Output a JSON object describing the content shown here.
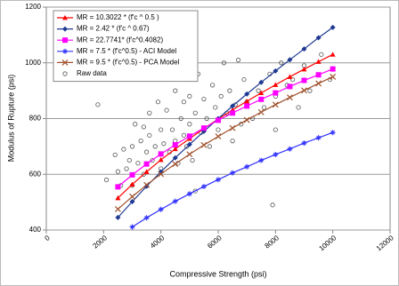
{
  "chart_data": {
    "type": "line",
    "xlabel": "Compressive Strength (psi)",
    "ylabel": "Modulus of Rupture (psi)",
    "xlim": [
      0,
      12000
    ],
    "xticks": [
      0,
      2000,
      4000,
      6000,
      8000,
      10000,
      12000
    ],
    "ylim": [
      400,
      1200
    ],
    "yticks": [
      400,
      600,
      800,
      1000,
      1200
    ],
    "grid": true,
    "legend": "upper left",
    "x": [
      2500,
      3000,
      3500,
      4000,
      4500,
      5000,
      5500,
      6000,
      6500,
      7000,
      7500,
      8000,
      8500,
      9000,
      9500,
      10000
    ],
    "series": [
      {
        "name": "MR = 10.3022 * (f'c ^ 0.5 )",
        "color": "#ff0000",
        "marker": "triangle",
        "values": [
          515,
          564,
          609,
          652,
          691,
          728,
          764,
          798,
          831,
          862,
          892,
          921,
          950,
          977,
          1004,
          1030
        ]
      },
      {
        "name": "MR = 2.42 * (f'c ^ 0.67)",
        "color": "#1f3a93",
        "marker": "diamond",
        "values": [
          445,
          502,
          557,
          609,
          659,
          707,
          754,
          800,
          845,
          888,
          930,
          971,
          1011,
          1050,
          1090,
          1127
        ]
      },
      {
        "name": "MR = 22.7741* (f'c^0.4082)",
        "color": "#ff00ff",
        "marker": "square",
        "values": [
          555,
          598,
          637,
          673,
          706,
          737,
          766,
          794,
          820,
          845,
          869,
          892,
          915,
          937,
          957,
          978
        ]
      },
      {
        "name": "MR = 7.5 * (f'c^0.5) - ACI Model",
        "color": "#3333ff",
        "marker": "star",
        "values": [
          null,
          411,
          444,
          474,
          503,
          530,
          556,
          581,
          605,
          627,
          650,
          671,
          691,
          712,
          731,
          750
        ]
      },
      {
        "name": "MR = 9.5 * (f'c^0.5) - PCA Model",
        "color": "#a0522d",
        "marker": "cross",
        "values": [
          475,
          520,
          562,
          601,
          637,
          672,
          705,
          736,
          766,
          795,
          823,
          850,
          876,
          901,
          926,
          950
        ]
      }
    ],
    "scatter": {
      "name": "Raw data",
      "color": "#555555",
      "x": [
        1800,
        2100,
        2400,
        2500,
        2600,
        2700,
        2800,
        2900,
        3000,
        3000,
        3100,
        3200,
        3300,
        3400,
        3400,
        3500,
        3600,
        3600,
        3700,
        3800,
        3900,
        4000,
        4000,
        4100,
        4200,
        4300,
        4400,
        4500,
        4500,
        4600,
        4700,
        4800,
        4800,
        4900,
        5000,
        5000,
        5100,
        5200,
        5300,
        5400,
        5500,
        5600,
        5700,
        5800,
        5900,
        6000,
        6100,
        6200,
        6300,
        6400,
        6500,
        6600,
        6800,
        6900,
        7000,
        7200,
        7400,
        7600,
        7800,
        8000,
        8000,
        8200,
        8400,
        8600,
        8800,
        9000,
        9200,
        9600,
        9900,
        7900,
        6700,
        5200,
        4300,
        3500
      ],
      "values": [
        850,
        580,
        670,
        610,
        560,
        690,
        620,
        650,
        560,
        700,
        780,
        640,
        720,
        600,
        770,
        680,
        740,
        820,
        650,
        700,
        860,
        760,
        620,
        710,
        830,
        680,
        760,
        900,
        720,
        640,
        800,
        740,
        860,
        700,
        880,
        780,
        650,
        820,
        960,
        750,
        870,
        800,
        700,
        920,
        840,
        760,
        880,
        1000,
        820,
        900,
        720,
        850,
        780,
        940,
        860,
        800,
        900,
        840,
        960,
        880,
        760,
        1000,
        920,
        940,
        840,
        990,
        900,
        1030,
        940,
        490,
        1010,
        540,
        1020,
        990
      ]
    }
  }
}
